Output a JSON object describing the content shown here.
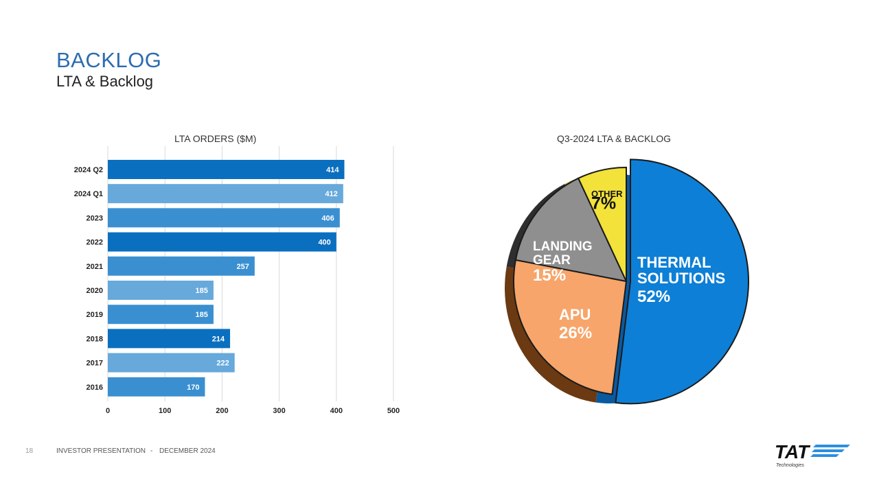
{
  "header": {
    "title": "BACKLOG",
    "subtitle": "LTA & Backlog"
  },
  "colors": {
    "bar_dark": "#0b6fc0",
    "bar_mid": "#3a8fd0",
    "bar_light": "#67a9db",
    "thermal": "#0d7fd6",
    "apu": "#f7a56a",
    "landing_gear": "#8f8f8f",
    "dark_segment": "#2e2e2e",
    "other": "#f2e23a",
    "title_blue": "#2b6cb0"
  },
  "chart_data": [
    {
      "type": "bar",
      "orientation": "horizontal",
      "title": "LTA ORDERS ($M)",
      "categories": [
        "2024 Q2",
        "2024 Q1",
        "2023",
        "2022",
        "2021",
        "2020",
        "2019",
        "2018",
        "2017",
        "2016"
      ],
      "values": [
        414,
        412,
        406,
        400,
        257,
        185,
        185,
        214,
        222,
        170
      ],
      "data_labels": [
        "414",
        "412",
        "406",
        "400",
        "257",
        "185",
        "185",
        "214",
        "222",
        "170"
      ],
      "xlim": [
        0,
        500
      ],
      "xticks": [
        "0",
        "100",
        "200",
        "300",
        "400",
        "500"
      ],
      "grid": true
    },
    {
      "type": "pie",
      "title": "Q3-2024 LTA & BACKLOG",
      "slices": [
        {
          "label": "THERMAL SOLUTIONS",
          "label_lines": [
            "THERMAL",
            "SOLUTIONS"
          ],
          "value": 52,
          "percent": "52%"
        },
        {
          "label": "APU",
          "label_lines": [
            "APU"
          ],
          "value": 26,
          "percent": "26%"
        },
        {
          "label": "LANDING GEAR",
          "label_lines": [
            "LANDING",
            "GEAR"
          ],
          "value": 15,
          "percent": "15%"
        },
        {
          "label": "OTHER",
          "label_lines": [
            "OTHER"
          ],
          "value": 7,
          "percent": "7%"
        }
      ]
    }
  ],
  "footer": {
    "page_number": "18",
    "presentation": "INVESTOR PRESENTATION",
    "separator": "-",
    "date": "DECEMBER 2024"
  },
  "logo": {
    "text": "TAT",
    "tagline": "Technologies"
  }
}
